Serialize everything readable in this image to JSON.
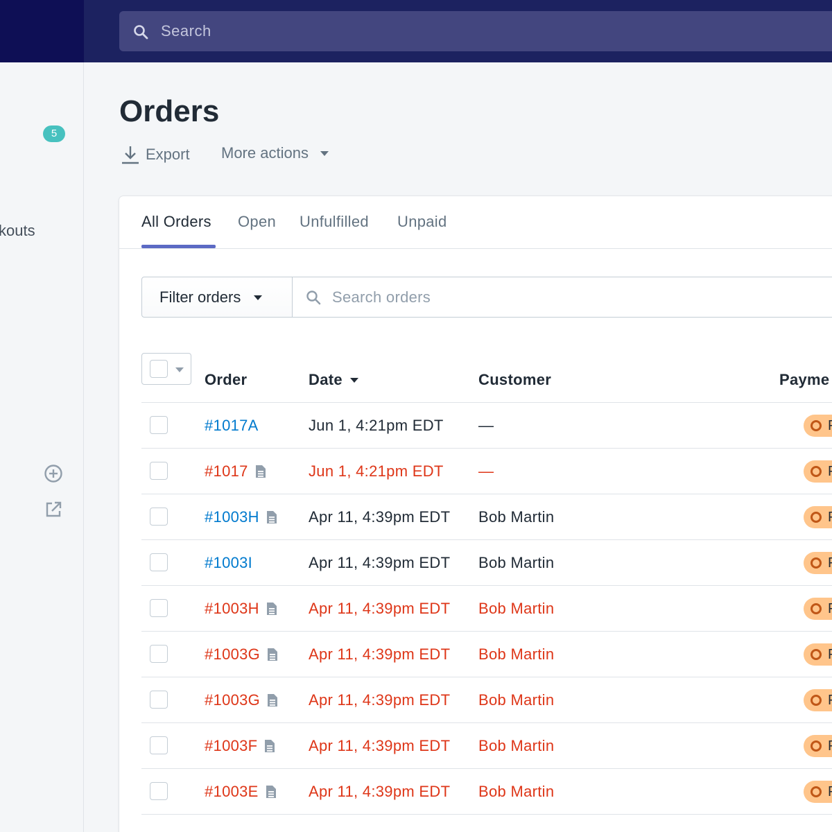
{
  "topbar": {
    "search_placeholder": "Search"
  },
  "sidebar": {
    "badge_count": "5",
    "partial_label": "kouts"
  },
  "header": {
    "title": "Orders",
    "export_label": "Export",
    "more_actions_label": "More actions"
  },
  "tabs": [
    {
      "label": "All Orders",
      "active": true
    },
    {
      "label": "Open",
      "active": false
    },
    {
      "label": "Unfulfilled",
      "active": false
    },
    {
      "label": "Unpaid",
      "active": false
    }
  ],
  "filter": {
    "button_label": "Filter orders",
    "search_placeholder": "Search orders"
  },
  "table": {
    "columns": {
      "order": "Order",
      "date": "Date",
      "customer": "Customer",
      "payment": "Payme"
    },
    "rows": [
      {
        "order": "#1017A",
        "date": "Jun 1, 4:21pm EDT",
        "customer": "—",
        "payment": "Pen",
        "alert": false,
        "has_doc": false
      },
      {
        "order": "#1017",
        "date": "Jun 1, 4:21pm EDT",
        "customer": "—",
        "payment": "Pen",
        "alert": true,
        "has_doc": true
      },
      {
        "order": "#1003H",
        "date": "Apr 11, 4:39pm EDT",
        "customer": "Bob Martin",
        "payment": "Pen",
        "alert": false,
        "has_doc": true
      },
      {
        "order": "#1003I",
        "date": "Apr 11, 4:39pm EDT",
        "customer": "Bob Martin",
        "payment": "Pen",
        "alert": false,
        "has_doc": false
      },
      {
        "order": "#1003H",
        "date": "Apr 11, 4:39pm EDT",
        "customer": "Bob Martin",
        "payment": "Pen",
        "alert": true,
        "has_doc": true
      },
      {
        "order": "#1003G",
        "date": "Apr 11, 4:39pm EDT",
        "customer": "Bob Martin",
        "payment": "Pen",
        "alert": true,
        "has_doc": true
      },
      {
        "order": "#1003G",
        "date": "Apr 11, 4:39pm EDT",
        "customer": "Bob Martin",
        "payment": "Pen",
        "alert": true,
        "has_doc": true
      },
      {
        "order": "#1003F",
        "date": "Apr 11, 4:39pm EDT",
        "customer": "Bob Martin",
        "payment": "Pen",
        "alert": true,
        "has_doc": true
      },
      {
        "order": "#1003E",
        "date": "Apr 11, 4:39pm EDT",
        "customer": "Bob Martin",
        "payment": "Pen",
        "alert": true,
        "has_doc": true
      }
    ]
  },
  "colors": {
    "topbar": "#1c2260",
    "logo_block": "#0e0f55",
    "search_bg": "#43467f",
    "link": "#007ace",
    "alert": "#de3618",
    "pending_pill": "#ffc58b",
    "tab_underline": "#5c6ac4",
    "badge": "#47c1bf"
  }
}
